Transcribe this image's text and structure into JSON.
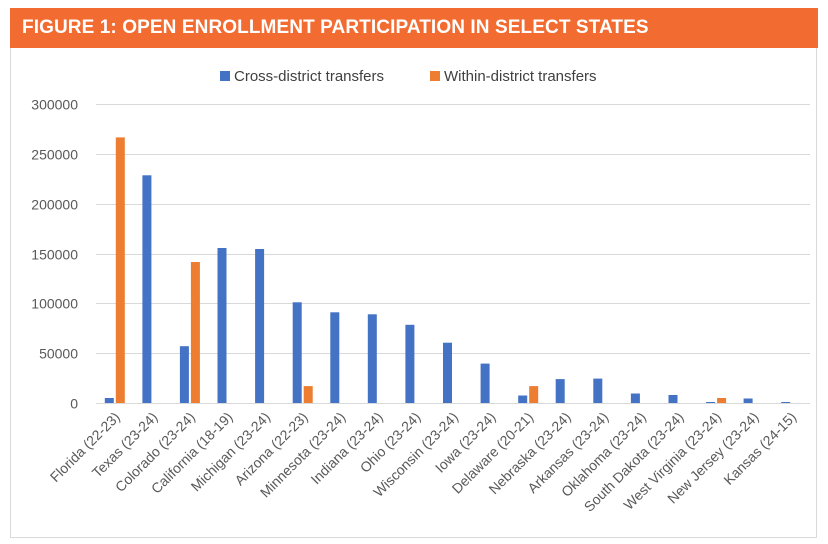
{
  "figure": {
    "title": "FIGURE 1: OPEN ENROLLMENT PARTICIPATION IN SELECT STATES"
  },
  "colors": {
    "banner": "#f26b31",
    "cross": "#4472c4",
    "within": "#ed7d31",
    "grid": "#d9d9d9"
  },
  "chart_data": {
    "type": "bar",
    "legend_position": "top",
    "grid": true,
    "ylim": [
      0,
      300000
    ],
    "yticks": [
      0,
      50000,
      100000,
      150000,
      200000,
      250000,
      300000
    ],
    "ytick_labels": [
      "0",
      "50000",
      "100000",
      "150000",
      "200000",
      "250000",
      "300000"
    ],
    "categories": [
      "Florida (22-23)",
      "Texas (23-24)",
      "Colorado (23-24)",
      "California (18-19)",
      "Michigan (23-24)",
      "Arizona (22-23)",
      "Minnesota (23-24)",
      "Indiana (23-24)",
      "Ohio (23-24)",
      "Wisconsin (23-24)",
      "Iowa (23-24)",
      "Delaware (20-21)",
      "Nebraska (23-24)",
      "Arkansas (23-24)",
      "Oklahoma (23-24)",
      "South Dakota (23-24)",
      "West Virginia (23-24)",
      "New Jersey (23-24)",
      "Kansas (24-15)"
    ],
    "series": [
      {
        "name": "Cross-district transfers",
        "values": [
          5000,
          228500,
          57000,
          155500,
          154500,
          101000,
          91000,
          89000,
          78500,
          60500,
          39500,
          7500,
          24000,
          24500,
          9500,
          8000,
          1000,
          4500,
          1000
        ]
      },
      {
        "name": "Within-district transfers",
        "values": [
          266500,
          null,
          141500,
          null,
          null,
          17000,
          null,
          null,
          null,
          null,
          null,
          17000,
          null,
          null,
          null,
          null,
          5000,
          null,
          null
        ]
      }
    ]
  }
}
